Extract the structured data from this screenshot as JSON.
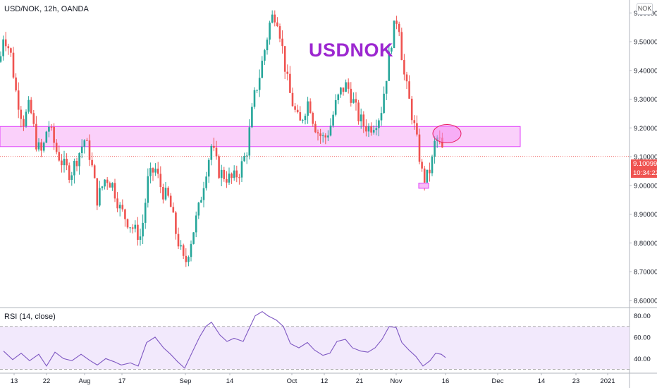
{
  "header": {
    "symbol_line": "USD/NOK, 12h, OANDA"
  },
  "watermark": "USDNOK",
  "currency_badge": "NOK",
  "current_price": {
    "value": "9.10099",
    "countdown": "10:34:22",
    "color": "#ef5350"
  },
  "rsi": {
    "label": "RSI (14, close)"
  },
  "chart_data": [
    {
      "type": "candlestick",
      "title": "USD/NOK, 12h, OANDA",
      "y_axis": {
        "ticks": [
          "9.60000",
          "9.50000",
          "9.40000",
          "9.30000",
          "9.20000",
          "9.10000",
          "9.00000",
          "8.90000",
          "8.80000",
          "8.70000",
          "8.60000"
        ],
        "range": [
          8.575,
          9.645
        ]
      },
      "x_axis": {
        "ticks": [
          "13",
          "22",
          "Aug",
          "17",
          "Sep",
          "14",
          "Oct",
          "12",
          "21",
          "Nov",
          "16",
          "Dec",
          "14",
          "23",
          "2021"
        ]
      },
      "up_color": "#26a69a",
      "down_color": "#ef5350",
      "close_path": [
        [
          0,
          9.43
        ],
        [
          5,
          9.53
        ],
        [
          15,
          9.46
        ],
        [
          23,
          9.32
        ],
        [
          33,
          9.22
        ],
        [
          42,
          9.28
        ],
        [
          52,
          9.14
        ],
        [
          60,
          9.11
        ],
        [
          68,
          9.22
        ],
        [
          80,
          9.12
        ],
        [
          90,
          9.07
        ],
        [
          100,
          9.04
        ],
        [
          110,
          9.1
        ],
        [
          120,
          9.16
        ],
        [
          128,
          9.1
        ],
        [
          138,
          8.95
        ],
        [
          150,
          9.03
        ],
        [
          160,
          9.0
        ],
        [
          170,
          8.92
        ],
        [
          180,
          8.88
        ],
        [
          192,
          8.84
        ],
        [
          200,
          8.82
        ],
        [
          210,
          9.02
        ],
        [
          220,
          9.06
        ],
        [
          230,
          8.98
        ],
        [
          240,
          8.95
        ],
        [
          250,
          8.83
        ],
        [
          262,
          8.72
        ],
        [
          272,
          8.82
        ],
        [
          282,
          8.92
        ],
        [
          292,
          9.05
        ],
        [
          300,
          9.14
        ],
        [
          310,
          9.05
        ],
        [
          320,
          9.03
        ],
        [
          330,
          9.02
        ],
        [
          340,
          9.05
        ],
        [
          350,
          9.12
        ],
        [
          360,
          9.3
        ],
        [
          368,
          9.38
        ],
        [
          376,
          9.48
        ],
        [
          384,
          9.58
        ],
        [
          392,
          9.6
        ],
        [
          398,
          9.52
        ],
        [
          405,
          9.4
        ],
        [
          410,
          9.33
        ],
        [
          418,
          9.26
        ],
        [
          425,
          9.21
        ],
        [
          432,
          9.26
        ],
        [
          438,
          9.3
        ],
        [
          445,
          9.22
        ],
        [
          452,
          9.18
        ],
        [
          460,
          9.16
        ],
        [
          468,
          9.2
        ],
        [
          476,
          9.28
        ],
        [
          484,
          9.33
        ],
        [
          492,
          9.35
        ],
        [
          500,
          9.3
        ],
        [
          508,
          9.24
        ],
        [
          516,
          9.21
        ],
        [
          524,
          9.2
        ],
        [
          532,
          9.22
        ],
        [
          540,
          9.25
        ],
        [
          548,
          9.38
        ],
        [
          555,
          9.5
        ],
        [
          562,
          9.58
        ],
        [
          566,
          9.56
        ],
        [
          572,
          9.4
        ],
        [
          580,
          9.3
        ],
        [
          588,
          9.2
        ],
        [
          595,
          9.1
        ],
        [
          600,
          9.02
        ],
        [
          606,
          9.03
        ],
        [
          612,
          9.07
        ],
        [
          617,
          9.15
        ],
        [
          622,
          9.17
        ],
        [
          626,
          9.13
        ],
        [
          631,
          9.1
        ]
      ],
      "annotations": [
        {
          "kind": "zone",
          "x0": 0,
          "x1": 738,
          "y_top": 9.205,
          "y_bottom": 9.135,
          "color": "#f48ff2"
        },
        {
          "kind": "ellipse",
          "cx": 634,
          "cy": 9.18,
          "color": "#f48ff2"
        },
        {
          "kind": "small-box",
          "x0": 594,
          "x1": 608,
          "y_top": 9.008,
          "y_bottom": 8.99
        }
      ],
      "price_line": 9.10099
    },
    {
      "type": "line",
      "title": "RSI (14, close)",
      "y_axis": {
        "ticks": [
          "80.00",
          "60.00",
          "40.00"
        ],
        "range": [
          27,
          87
        ]
      },
      "band": [
        30,
        70
      ],
      "line_color": "#7e57c2",
      "band_color": "#ede2fb",
      "path": [
        [
          5,
          47
        ],
        [
          18,
          39
        ],
        [
          30,
          45
        ],
        [
          42,
          38
        ],
        [
          55,
          44
        ],
        [
          66,
          33
        ],
        [
          78,
          46
        ],
        [
          90,
          40
        ],
        [
          102,
          38
        ],
        [
          115,
          44
        ],
        [
          128,
          38
        ],
        [
          138,
          34
        ],
        [
          150,
          40
        ],
        [
          162,
          37
        ],
        [
          172,
          34
        ],
        [
          185,
          36
        ],
        [
          196,
          33
        ],
        [
          208,
          55
        ],
        [
          220,
          60
        ],
        [
          232,
          50
        ],
        [
          242,
          44
        ],
        [
          252,
          37
        ],
        [
          262,
          31
        ],
        [
          272,
          45
        ],
        [
          283,
          60
        ],
        [
          292,
          70
        ],
        [
          300,
          74
        ],
        [
          312,
          62
        ],
        [
          322,
          56
        ],
        [
          332,
          59
        ],
        [
          345,
          56
        ],
        [
          352,
          66
        ],
        [
          362,
          80
        ],
        [
          372,
          84
        ],
        [
          380,
          80
        ],
        [
          392,
          76
        ],
        [
          402,
          70
        ],
        [
          412,
          54
        ],
        [
          424,
          50
        ],
        [
          436,
          55
        ],
        [
          446,
          48
        ],
        [
          458,
          43
        ],
        [
          468,
          45
        ],
        [
          478,
          56
        ],
        [
          490,
          58
        ],
        [
          500,
          50
        ],
        [
          512,
          47
        ],
        [
          522,
          46
        ],
        [
          532,
          50
        ],
        [
          542,
          58
        ],
        [
          552,
          70
        ],
        [
          562,
          69
        ],
        [
          570,
          55
        ],
        [
          580,
          48
        ],
        [
          590,
          42
        ],
        [
          600,
          33
        ],
        [
          610,
          38
        ],
        [
          618,
          45
        ],
        [
          626,
          44
        ],
        [
          632,
          41
        ]
      ]
    }
  ]
}
